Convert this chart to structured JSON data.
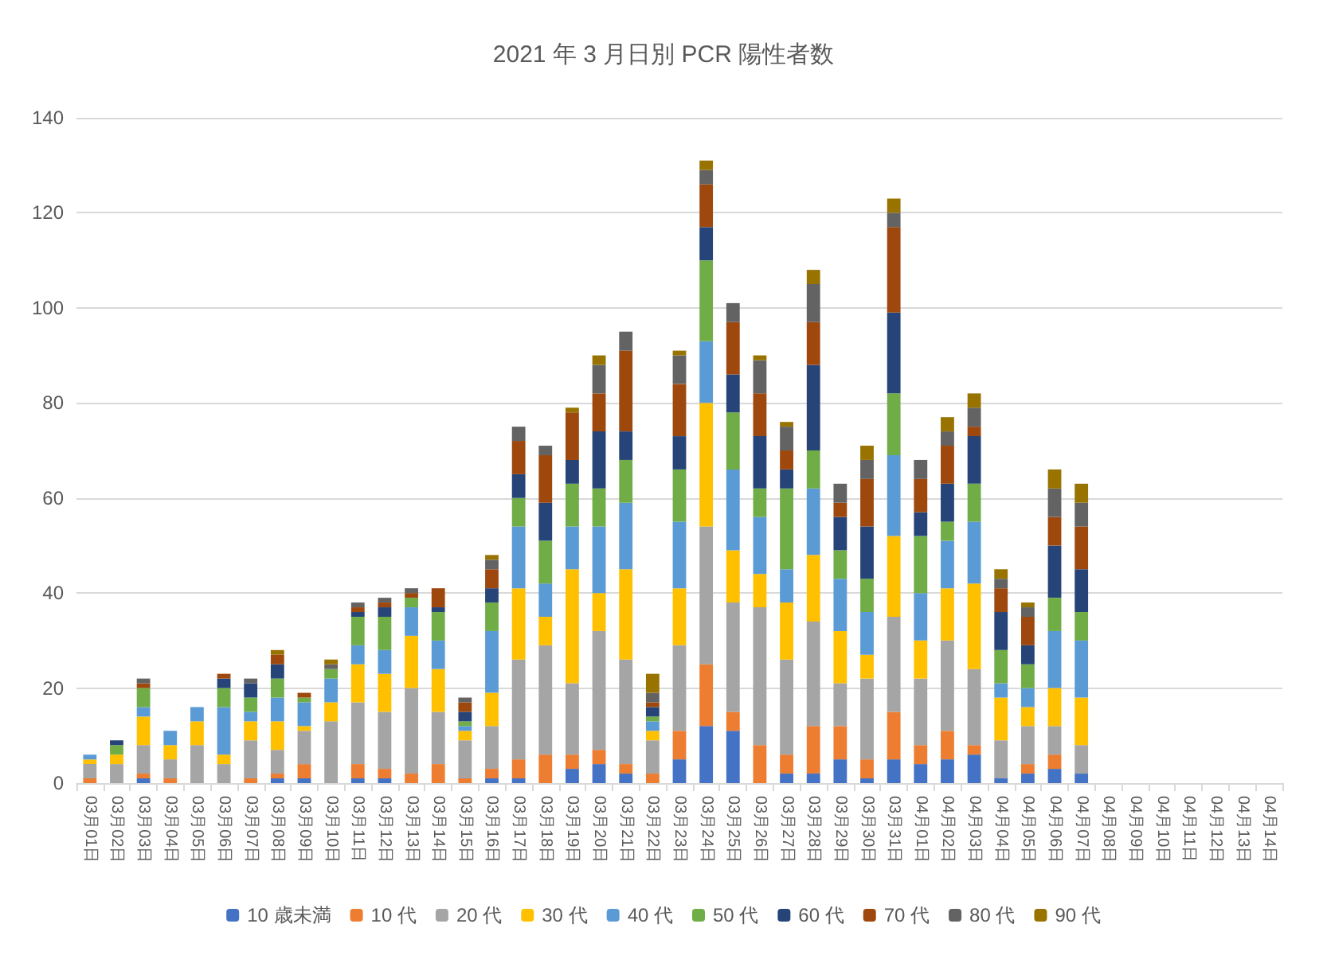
{
  "chart_data": {
    "type": "bar",
    "stacked": true,
    "title": "2021 年 3 月日別 PCR 陽性者数",
    "categories": [
      "03月01日",
      "03月02日",
      "03月03日",
      "03月04日",
      "03月05日",
      "03月06日",
      "03月07日",
      "03月08日",
      "03月09日",
      "03月10日",
      "03月11日",
      "03月12日",
      "03月13日",
      "03月14日",
      "03月15日",
      "03月16日",
      "03月17日",
      "03月18日",
      "03月19日",
      "03月20日",
      "03月21日",
      "03月22日",
      "03月23日",
      "03月24日",
      "03月25日",
      "03月26日",
      "03月27日",
      "03月28日",
      "03月29日",
      "03月30日",
      "03月31日",
      "04月01日",
      "04月02日",
      "04月03日",
      "04月04日",
      "04月05日",
      "04月06日",
      "04月07日",
      "04月08日",
      "04月09日",
      "04月10日",
      "04月11日",
      "04月12日",
      "04月13日",
      "04月14日"
    ],
    "series": [
      {
        "name": "10 歳未満",
        "color": "#4472c4",
        "values": [
          0,
          0,
          1,
          0,
          0,
          0,
          0,
          1,
          1,
          0,
          1,
          1,
          0,
          0,
          0,
          1,
          1,
          0,
          3,
          4,
          2,
          0,
          5,
          12,
          11,
          0,
          2,
          2,
          5,
          1,
          5,
          4,
          5,
          6,
          1,
          2,
          3,
          2,
          null,
          null,
          null,
          null,
          null,
          null,
          null
        ]
      },
      {
        "name": "10 代",
        "color": "#ed7d31",
        "values": [
          1,
          0,
          1,
          1,
          0,
          0,
          1,
          1,
          3,
          0,
          3,
          2,
          2,
          4,
          1,
          2,
          4,
          6,
          3,
          3,
          2,
          2,
          6,
          13,
          4,
          8,
          4,
          10,
          7,
          4,
          10,
          4,
          6,
          2,
          0,
          2,
          3,
          0,
          null,
          null,
          null,
          null,
          null,
          null,
          null
        ]
      },
      {
        "name": "20 代",
        "color": "#a5a5a5",
        "values": [
          3,
          4,
          6,
          4,
          8,
          4,
          8,
          5,
          7,
          13,
          13,
          12,
          18,
          11,
          8,
          9,
          21,
          23,
          15,
          25,
          22,
          7,
          18,
          29,
          23,
          29,
          20,
          22,
          9,
          17,
          20,
          14,
          19,
          16,
          8,
          8,
          6,
          6,
          null,
          null,
          null,
          null,
          null,
          null,
          null
        ]
      },
      {
        "name": "30 代",
        "color": "#ffc000",
        "values": [
          1,
          2,
          6,
          3,
          5,
          2,
          4,
          6,
          1,
          4,
          8,
          8,
          11,
          9,
          2,
          7,
          15,
          6,
          24,
          8,
          19,
          2,
          12,
          26,
          11,
          7,
          12,
          14,
          11,
          5,
          17,
          8,
          11,
          18,
          9,
          4,
          8,
          10,
          null,
          null,
          null,
          null,
          null,
          null,
          null
        ]
      },
      {
        "name": "40 代",
        "color": "#5b9bd5",
        "values": [
          1,
          0,
          2,
          3,
          3,
          10,
          2,
          5,
          5,
          5,
          4,
          5,
          6,
          6,
          1,
          13,
          13,
          7,
          9,
          14,
          14,
          2,
          14,
          13,
          17,
          12,
          7,
          14,
          11,
          9,
          17,
          10,
          10,
          13,
          3,
          4,
          12,
          12,
          null,
          null,
          null,
          null,
          null,
          null,
          null
        ]
      },
      {
        "name": "50 代",
        "color": "#70ad47",
        "values": [
          0,
          2,
          4,
          0,
          0,
          4,
          3,
          4,
          1,
          2,
          6,
          7,
          2,
          6,
          1,
          6,
          6,
          9,
          9,
          8,
          9,
          1,
          11,
          17,
          12,
          6,
          17,
          8,
          6,
          7,
          13,
          12,
          4,
          8,
          7,
          5,
          7,
          6,
          null,
          null,
          null,
          null,
          null,
          null,
          null
        ]
      },
      {
        "name": "60 代",
        "color": "#264478",
        "values": [
          0,
          1,
          0,
          0,
          0,
          2,
          3,
          3,
          0,
          0,
          1,
          2,
          0,
          1,
          2,
          3,
          5,
          8,
          5,
          12,
          6,
          2,
          7,
          7,
          8,
          11,
          4,
          18,
          7,
          11,
          17,
          5,
          8,
          10,
          8,
          4,
          11,
          9,
          null,
          null,
          null,
          null,
          null,
          null,
          null
        ]
      },
      {
        "name": "70 代",
        "color": "#9e480e",
        "values": [
          0,
          0,
          1,
          0,
          0,
          1,
          0,
          2,
          1,
          0,
          1,
          1,
          1,
          4,
          2,
          4,
          7,
          10,
          10,
          8,
          17,
          1,
          11,
          9,
          11,
          9,
          4,
          9,
          3,
          10,
          18,
          7,
          8,
          2,
          5,
          6,
          6,
          9,
          null,
          null,
          null,
          null,
          null,
          null,
          null
        ]
      },
      {
        "name": "80 代",
        "color": "#636363",
        "values": [
          0,
          0,
          1,
          0,
          0,
          0,
          1,
          0,
          0,
          1,
          1,
          1,
          1,
          0,
          1,
          2,
          3,
          2,
          0,
          6,
          4,
          2,
          6,
          3,
          4,
          7,
          5,
          8,
          4,
          4,
          3,
          4,
          3,
          4,
          2,
          2,
          6,
          5,
          null,
          null,
          null,
          null,
          null,
          null,
          null
        ]
      },
      {
        "name": "90 代",
        "color": "#997300",
        "values": [
          0,
          0,
          0,
          0,
          0,
          0,
          0,
          1,
          0,
          1,
          0,
          0,
          0,
          0,
          0,
          1,
          0,
          0,
          1,
          2,
          0,
          4,
          1,
          2,
          0,
          1,
          1,
          3,
          0,
          3,
          3,
          0,
          3,
          3,
          2,
          1,
          4,
          4,
          null,
          null,
          null,
          null,
          null,
          null,
          null
        ]
      }
    ],
    "ylim": [
      0,
      140
    ],
    "yticks": [
      0,
      20,
      40,
      60,
      80,
      100,
      120,
      140
    ],
    "grid": "y",
    "legend": "bottom"
  }
}
